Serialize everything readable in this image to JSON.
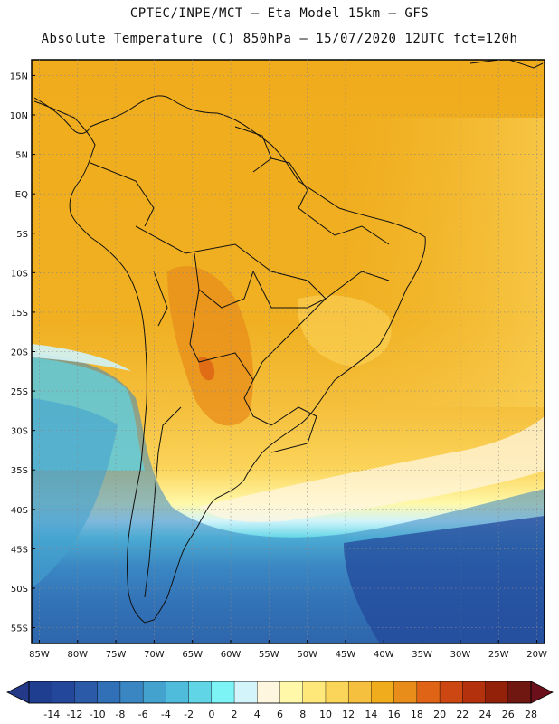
{
  "header": {
    "line1": "CPTEC/INPE/MCT  –   Eta Model 15km – GFS",
    "line2": "Absolute Temperature (C) 850hPa – 15/07/2020 12UTC fct=120h"
  },
  "map": {
    "lat_ticks": [
      "15N",
      "10N",
      "5N",
      "EQ",
      "5S",
      "10S",
      "15S",
      "20S",
      "25S",
      "30S",
      "35S",
      "40S",
      "45S",
      "50S",
      "55S"
    ],
    "lat_values": [
      15,
      10,
      5,
      0,
      -5,
      -10,
      -15,
      -20,
      -25,
      -30,
      -35,
      -40,
      -45,
      -50,
      -55
    ],
    "lon_ticks": [
      "85W",
      "80W",
      "75W",
      "70W",
      "65W",
      "60W",
      "55W",
      "50W",
      "45W",
      "40W",
      "35W",
      "30W",
      "25W",
      "20W"
    ],
    "lon_values": [
      -85,
      -80,
      -75,
      -70,
      -65,
      -60,
      -55,
      -50,
      -45,
      -40,
      -35,
      -30,
      -25,
      -20
    ],
    "lat_range": [
      -57,
      17
    ],
    "lon_range": [
      -86,
      -19
    ]
  },
  "colorbar": {
    "labels": [
      "-14",
      "-12",
      "-10",
      "-8",
      "-6",
      "-4",
      "-2",
      "0",
      "2",
      "4",
      "6",
      "8",
      "10",
      "12",
      "14",
      "16",
      "18",
      "20",
      "22",
      "24",
      "26",
      "28"
    ],
    "colors": [
      "#1f3e8f",
      "#23489b",
      "#2a5aa8",
      "#3170b6",
      "#3a86c3",
      "#44a2cf",
      "#4fbcdc",
      "#5fd5e6",
      "#7cf3f5",
      "#d2f4fa",
      "#fff6e0",
      "#fff8a8",
      "#ffe87a",
      "#fbd45a",
      "#f5c03d",
      "#f0ac1c",
      "#e88c1a",
      "#df6415",
      "#cc4711",
      "#b3320d",
      "#93210a",
      "#6f1710"
    ],
    "min_color": "#243a88",
    "max_color": "#6b0f1a"
  }
}
